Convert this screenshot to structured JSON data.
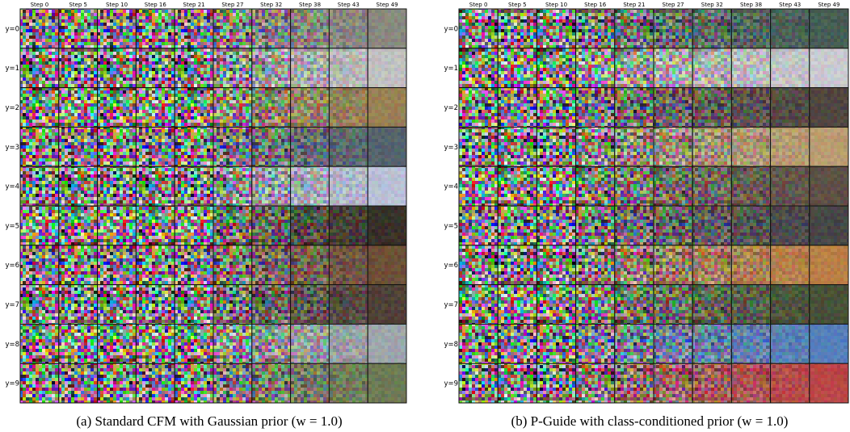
{
  "panels": [
    {
      "columns": [
        "Step 0",
        "Step 5",
        "Step 10",
        "Step 16",
        "Step 21",
        "Step 27",
        "Step 32",
        "Step 38",
        "Step 43",
        "Step 49"
      ],
      "rows": [
        "y=0",
        "y=1",
        "y=2",
        "y=3",
        "y=4",
        "y=5",
        "y=6",
        "y=7",
        "y=8",
        "y=9"
      ],
      "caption": "(a) Standard CFM with Gaussian prior (w = 1.0)"
    },
    {
      "columns": [
        "Step 0",
        "Step 5",
        "Step 10",
        "Step 16",
        "Step 21",
        "Step 27",
        "Step 32",
        "Step 38",
        "Step 43",
        "Step 49"
      ],
      "rows": [
        "y=0",
        "y=1",
        "y=2",
        "y=3",
        "y=4",
        "y=5",
        "y=6",
        "y=7",
        "y=8",
        "y=9"
      ],
      "caption": "(b) P-Guide with class-conditioned prior (w = 1.0)"
    }
  ]
}
